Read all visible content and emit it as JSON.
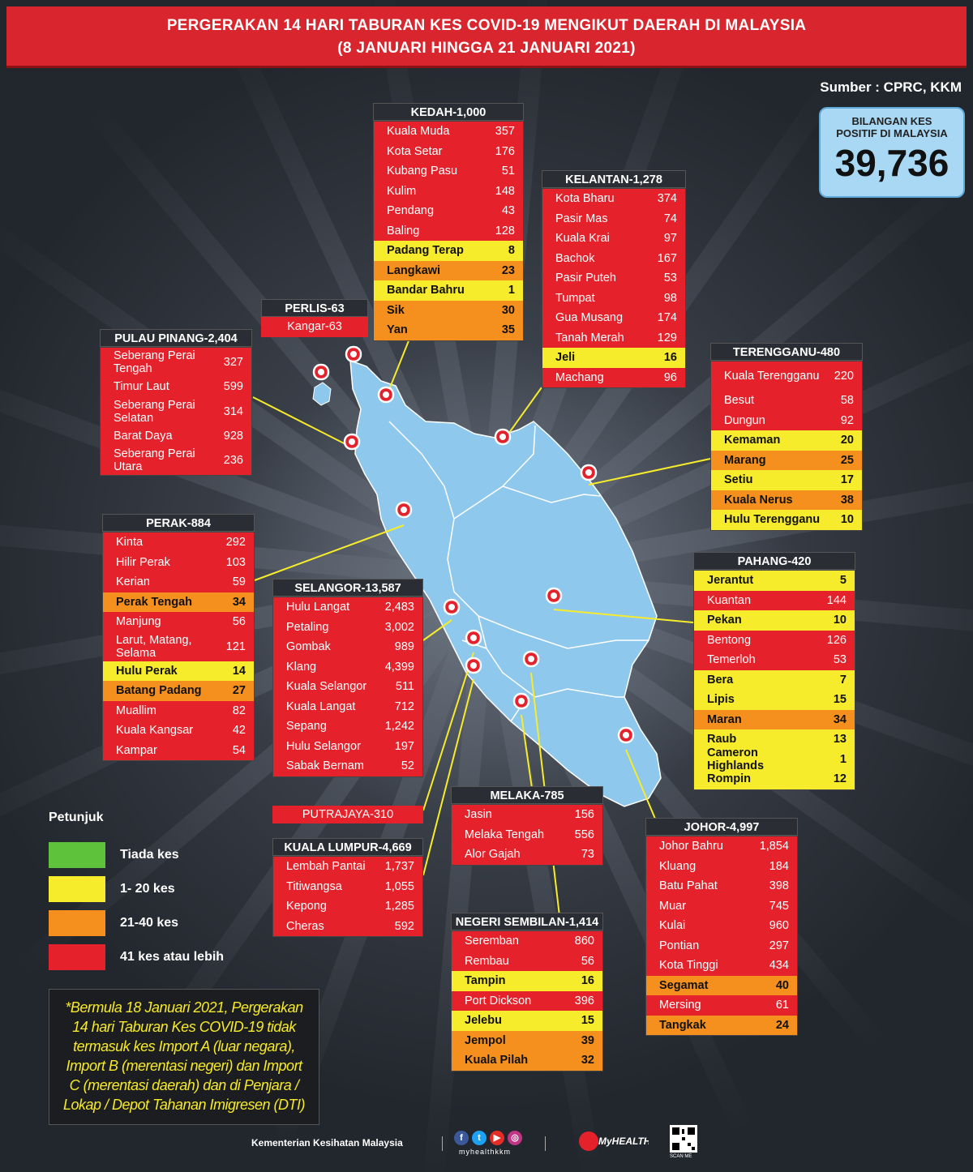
{
  "title": {
    "line1": "PERGERAKAN 14 HARI TABURAN KES COVID-19 MENGIKUT DAERAH DI MALAYSIA",
    "line2": "(8 JANUARI HINGGA 21 JANUARI 2021)"
  },
  "source": "Sumber : CPRC, KKM",
  "total": {
    "label_line1": "BILANGAN KES",
    "label_line2": "POSITIF DI MALAYSIA",
    "value": "39,736"
  },
  "colors": {
    "red": "#e5222b",
    "yellow": "#f7ec2b",
    "orange": "#f5901f",
    "green": "#5ec23a",
    "map": "#8ec8ec"
  },
  "states": {
    "kedah": {
      "header": "KEDAH-1,000",
      "rows": [
        {
          "name": "Kuala Muda",
          "value": "357",
          "level": "red"
        },
        {
          "name": "Kota Setar",
          "value": "176",
          "level": "red"
        },
        {
          "name": "Kubang Pasu",
          "value": "51",
          "level": "red"
        },
        {
          "name": "Kulim",
          "value": "148",
          "level": "red"
        },
        {
          "name": "Pendang",
          "value": "43",
          "level": "red"
        },
        {
          "name": "Baling",
          "value": "128",
          "level": "red"
        },
        {
          "name": "Padang Terap",
          "value": "8",
          "level": "yellow"
        },
        {
          "name": "Langkawi",
          "value": "23",
          "level": "orange"
        },
        {
          "name": "Bandar Bahru",
          "value": "1",
          "level": "yellow"
        },
        {
          "name": "Sik",
          "value": "30",
          "level": "orange"
        },
        {
          "name": "Yan",
          "value": "35",
          "level": "orange"
        }
      ]
    },
    "kelantan": {
      "header": "KELANTAN-1,278",
      "rows": [
        {
          "name": "Kota Bharu",
          "value": "374",
          "level": "red"
        },
        {
          "name": "Pasir Mas",
          "value": "74",
          "level": "red"
        },
        {
          "name": "Kuala Krai",
          "value": "97",
          "level": "red"
        },
        {
          "name": "Bachok",
          "value": "167",
          "level": "red"
        },
        {
          "name": "Pasir Puteh",
          "value": "53",
          "level": "red"
        },
        {
          "name": "Tumpat",
          "value": "98",
          "level": "red"
        },
        {
          "name": "Gua Musang",
          "value": "174",
          "level": "red"
        },
        {
          "name": "Tanah Merah",
          "value": "129",
          "level": "red"
        },
        {
          "name": "Jeli",
          "value": "16",
          "level": "yellow"
        },
        {
          "name": "Machang",
          "value": "96",
          "level": "red"
        }
      ]
    },
    "perlis": {
      "header": "PERLIS-63",
      "rows": [
        {
          "name": "Kangar-63",
          "value": "",
          "level": "red"
        }
      ]
    },
    "pulau_pinang": {
      "header": "PULAU PINANG-2,404",
      "rows": [
        {
          "name": "Seberang Perai Tengah",
          "value": "327",
          "level": "red"
        },
        {
          "name": "Timur Laut",
          "value": "599",
          "level": "red"
        },
        {
          "name": "Seberang Perai Selatan",
          "value": "314",
          "level": "red"
        },
        {
          "name": "Barat Daya",
          "value": "928",
          "level": "red"
        },
        {
          "name": "Seberang Perai Utara",
          "value": "236",
          "level": "red"
        }
      ]
    },
    "terengganu": {
      "header": "TERENGGANU-480",
      "rows": [
        {
          "name": "Kuala Terengganu",
          "value": "220",
          "level": "red"
        },
        {
          "name": "Besut",
          "value": "58",
          "level": "red"
        },
        {
          "name": "Dungun",
          "value": "92",
          "level": "red"
        },
        {
          "name": "Kemaman",
          "value": "20",
          "level": "yellow"
        },
        {
          "name": "Marang",
          "value": "25",
          "level": "orange"
        },
        {
          "name": "Setiu",
          "value": "17",
          "level": "yellow"
        },
        {
          "name": "Kuala Nerus",
          "value": "38",
          "level": "orange"
        },
        {
          "name": "Hulu Terengganu",
          "value": "10",
          "level": "yellow"
        }
      ]
    },
    "perak": {
      "header": "PERAK-884",
      "rows": [
        {
          "name": "Kinta",
          "value": "292",
          "level": "red"
        },
        {
          "name": "Hilir Perak",
          "value": "103",
          "level": "red"
        },
        {
          "name": "Kerian",
          "value": "59",
          "level": "red"
        },
        {
          "name": "Perak Tengah",
          "value": "34",
          "level": "orange"
        },
        {
          "name": "Manjung",
          "value": "56",
          "level": "red"
        },
        {
          "name": "Larut, Matang, Selama",
          "value": "121",
          "level": "red"
        },
        {
          "name": "Hulu Perak",
          "value": "14",
          "level": "yellow"
        },
        {
          "name": "Batang Padang",
          "value": "27",
          "level": "orange"
        },
        {
          "name": "Muallim",
          "value": "82",
          "level": "red"
        },
        {
          "name": "Kuala Kangsar",
          "value": "42",
          "level": "red"
        },
        {
          "name": "Kampar",
          "value": "54",
          "level": "red"
        }
      ]
    },
    "selangor": {
      "header": "SELANGOR-13,587",
      "rows": [
        {
          "name": "Hulu Langat",
          "value": "2,483",
          "level": "red"
        },
        {
          "name": "Petaling",
          "value": "3,002",
          "level": "red"
        },
        {
          "name": "Gombak",
          "value": "989",
          "level": "red"
        },
        {
          "name": "Klang",
          "value": "4,399",
          "level": "red"
        },
        {
          "name": "Kuala Selangor",
          "value": "511",
          "level": "red"
        },
        {
          "name": "Kuala Langat",
          "value": "712",
          "level": "red"
        },
        {
          "name": "Sepang",
          "value": "1,242",
          "level": "red"
        },
        {
          "name": "Hulu Selangor",
          "value": "197",
          "level": "red"
        },
        {
          "name": "Sabak Bernam",
          "value": "52",
          "level": "red"
        }
      ]
    },
    "pahang": {
      "header": "PAHANG-420",
      "rows": [
        {
          "name": "Jerantut",
          "value": "5",
          "level": "yellow"
        },
        {
          "name": "Kuantan",
          "value": "144",
          "level": "red"
        },
        {
          "name": "Pekan",
          "value": "10",
          "level": "yellow"
        },
        {
          "name": "Bentong",
          "value": "126",
          "level": "red"
        },
        {
          "name": "Temerloh",
          "value": "53",
          "level": "red"
        },
        {
          "name": "Bera",
          "value": "7",
          "level": "yellow"
        },
        {
          "name": "Lipis",
          "value": "15",
          "level": "yellow"
        },
        {
          "name": "Maran",
          "value": "34",
          "level": "orange"
        },
        {
          "name": "Raub",
          "value": "13",
          "level": "yellow"
        },
        {
          "name": "Cameron Highlands",
          "value": "1",
          "level": "yellow"
        },
        {
          "name": "Rompin",
          "value": "12",
          "level": "yellow"
        }
      ]
    },
    "putrajaya": "PUTRAJAYA-310",
    "melaka": {
      "header": "MELAKA-785",
      "rows": [
        {
          "name": "Jasin",
          "value": "156",
          "level": "red"
        },
        {
          "name": "Melaka Tengah",
          "value": "556",
          "level": "red"
        },
        {
          "name": "Alor Gajah",
          "value": "73",
          "level": "red"
        }
      ]
    },
    "kuala_lumpur": {
      "header": "KUALA LUMPUR-4,669",
      "rows": [
        {
          "name": "Lembah Pantai",
          "value": "1,737",
          "level": "red"
        },
        {
          "name": "Titiwangsa",
          "value": "1,055",
          "level": "red"
        },
        {
          "name": "Kepong",
          "value": "1,285",
          "level": "red"
        },
        {
          "name": "Cheras",
          "value": "592",
          "level": "red"
        }
      ]
    },
    "johor": {
      "header": "JOHOR-4,997",
      "rows": [
        {
          "name": "Johor Bahru",
          "value": "1,854",
          "level": "red"
        },
        {
          "name": "Kluang",
          "value": "184",
          "level": "red"
        },
        {
          "name": "Batu Pahat",
          "value": "398",
          "level": "red"
        },
        {
          "name": "Muar",
          "value": "745",
          "level": "red"
        },
        {
          "name": "Kulai",
          "value": "960",
          "level": "red"
        },
        {
          "name": "Pontian",
          "value": "297",
          "level": "red"
        },
        {
          "name": "Kota Tinggi",
          "value": "434",
          "level": "red"
        },
        {
          "name": "Segamat",
          "value": "40",
          "level": "orange"
        },
        {
          "name": "Mersing",
          "value": "61",
          "level": "red"
        },
        {
          "name": "Tangkak",
          "value": "24",
          "level": "orange"
        }
      ]
    },
    "negeri_sembilan": {
      "header": "NEGERI SEMBILAN-1,414",
      "rows": [
        {
          "name": "Seremban",
          "value": "860",
          "level": "red"
        },
        {
          "name": "Rembau",
          "value": "56",
          "level": "red"
        },
        {
          "name": "Tampin",
          "value": "16",
          "level": "yellow"
        },
        {
          "name": "Port Dickson",
          "value": "396",
          "level": "red"
        },
        {
          "name": "Jelebu",
          "value": "15",
          "level": "yellow"
        },
        {
          "name": "Jempol",
          "value": "39",
          "level": "orange"
        },
        {
          "name": "Kuala Pilah",
          "value": "32",
          "level": "orange"
        }
      ]
    }
  },
  "legend": {
    "title": "Petunjuk",
    "items": [
      {
        "label": "Tiada kes",
        "color": "#5ec23a"
      },
      {
        "label": "1- 20 kes",
        "color": "#f7ec2b"
      },
      {
        "label": "21-40 kes",
        "color": "#f5901f"
      },
      {
        "label": "41 kes atau lebih",
        "color": "#e5222b"
      }
    ]
  },
  "note": "*Bermula 18 Januari 2021, Pergerakan 14 hari Taburan Kes COVID-19 tidak termasuk kes Import A (luar negara), Import B (merentasi negeri) dan Import C (merentasi daerah) dan di Penjara / Lokap / Depot Tahanan Imigresen (DTI)",
  "footer": {
    "ministry": "Kementerian Kesihatan Malaysia",
    "handle": "myhealthkkm",
    "brand": "MyHEALTH",
    "qr_label": "SCAN ME"
  }
}
